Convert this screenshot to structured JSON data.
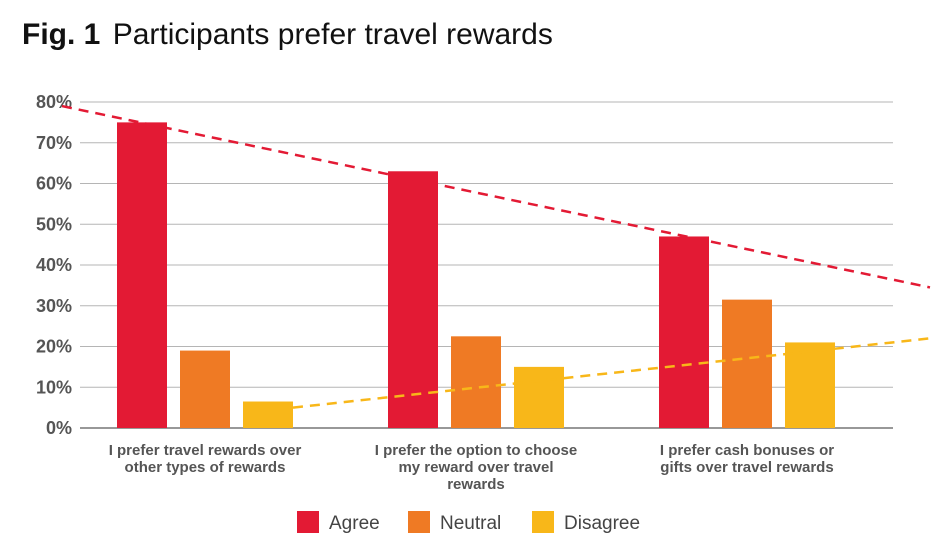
{
  "figure": {
    "label": "Fig. 1",
    "title": "Participants prefer travel rewards"
  },
  "chart_data": {
    "type": "bar",
    "categories": [
      [
        "I prefer travel rewards over",
        "other types of rewards"
      ],
      [
        "I prefer the option to choose",
        "my reward over travel",
        "rewards"
      ],
      [
        "I prefer cash bonuses or",
        "gifts over travel rewards"
      ]
    ],
    "series": [
      {
        "name": "Agree",
        "color": "#e31a34",
        "values": [
          75,
          63,
          47
        ]
      },
      {
        "name": "Neutral",
        "color": "#ef7a24",
        "values": [
          19,
          22.5,
          31.5
        ]
      },
      {
        "name": "Disagree",
        "color": "#f8b719",
        "values": [
          6.5,
          15,
          21
        ]
      }
    ],
    "ylim": [
      0,
      80
    ],
    "yticks": [
      "0%",
      "10%",
      "20%",
      "30%",
      "40%",
      "50%",
      "60%",
      "70%",
      "80%"
    ],
    "grid": true,
    "legend": "bottom",
    "trendlines": [
      {
        "series": "Agree",
        "style": "dashed",
        "color": "#e31a34",
        "from": 79,
        "to": 34.5
      },
      {
        "series": "Disagree",
        "style": "dashed",
        "color": "#f8b719",
        "from": 5,
        "to": 22
      }
    ]
  }
}
